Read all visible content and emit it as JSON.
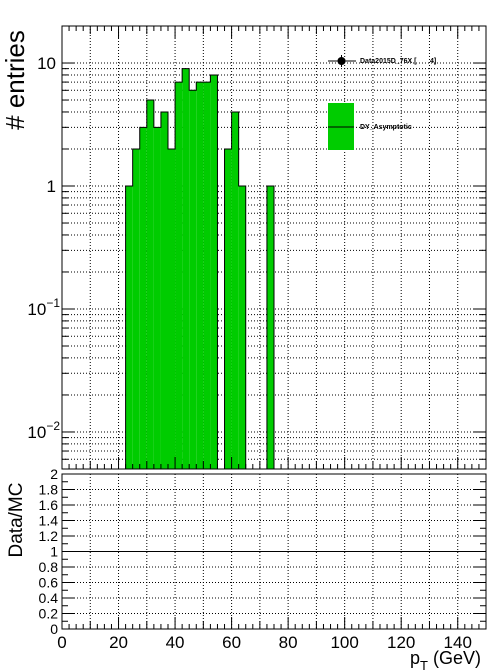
{
  "chart_data": [
    {
      "type": "bar",
      "panel": "main",
      "ylabel": "# entries",
      "yscale": "log",
      "ylim": [
        0.005,
        20
      ],
      "xlim": [
        0,
        150
      ],
      "bin_width": 2.5,
      "grid": true,
      "y_ticks": [
        {
          "value": 10,
          "label": "10"
        },
        {
          "value": 1,
          "label": "1"
        },
        {
          "value": 0.1,
          "label": "10",
          "exp": "−1"
        },
        {
          "value": 0.01,
          "label": "10",
          "exp": "−2"
        }
      ],
      "series": [
        {
          "name": "DY_Asymptotic",
          "color": "#00cc00",
          "x": [
            22.5,
            25,
            27.5,
            30,
            32.5,
            35,
            37.5,
            40,
            42.5,
            45,
            47.5,
            50,
            52.5,
            57.5,
            60,
            62.5,
            72.5
          ],
          "values": [
            1,
            2,
            3,
            5,
            3,
            4,
            2,
            7,
            9,
            6,
            7,
            7,
            8,
            2,
            4,
            1,
            1
          ]
        }
      ],
      "legend": {
        "position": "top-right",
        "entries": [
          {
            "label": "Data2015D_76X [       4]",
            "style": "marker"
          },
          {
            "label": "DY_Asymptotic",
            "style": "fill",
            "color": "#00cc00"
          }
        ]
      }
    },
    {
      "type": "line",
      "panel": "ratio",
      "ylabel": "Data/MC",
      "xlabel": "p",
      "xlabel_sub": "T",
      "xlabel_unit": " (GeV)",
      "ylim": [
        0,
        2
      ],
      "xlim": [
        0,
        150
      ],
      "grid": true,
      "reference_line": 1,
      "y_ticks": [
        "0",
        "0.2",
        "0.4",
        "0.6",
        "0.8",
        "1",
        "1.2",
        "1.4",
        "1.6",
        "1.8",
        "2"
      ],
      "x_ticks": [
        "0",
        "20",
        "40",
        "60",
        "80",
        "100",
        "120",
        "140"
      ]
    }
  ]
}
